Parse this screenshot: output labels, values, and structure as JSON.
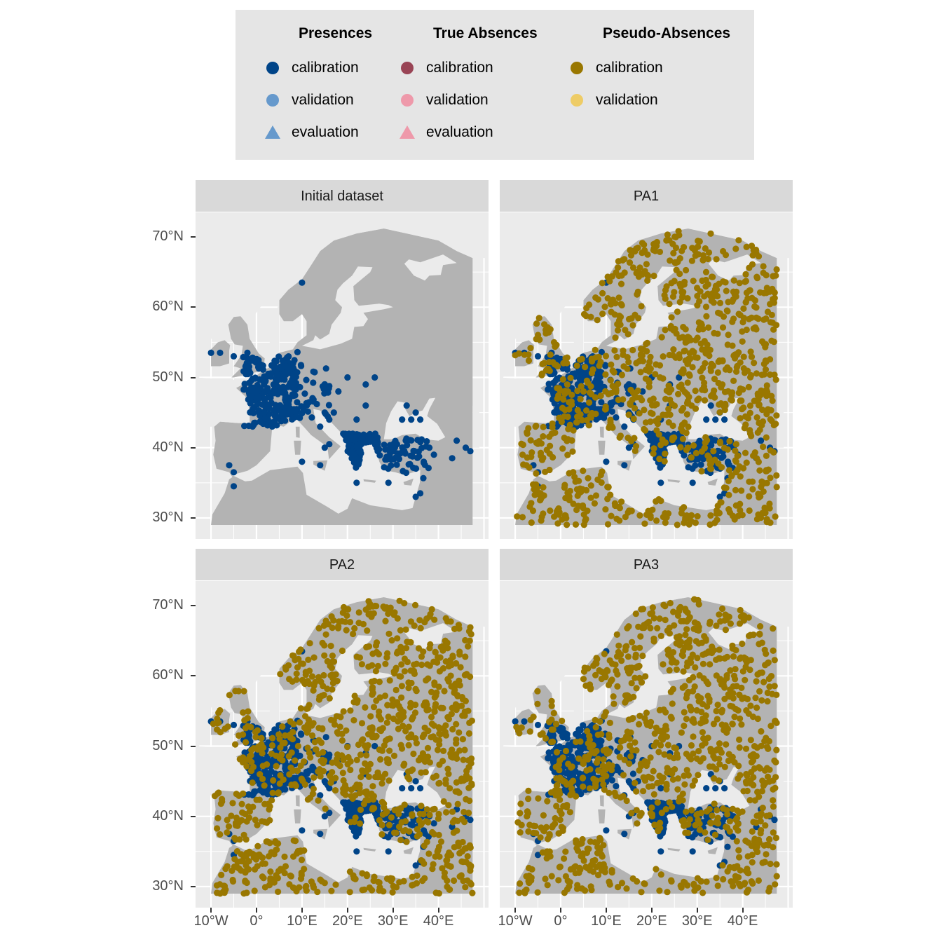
{
  "legend": {
    "groups": [
      {
        "title": "Presences",
        "items": [
          {
            "label": "calibration",
            "shape": "circle",
            "color": "#004488"
          },
          {
            "label": "validation",
            "shape": "circle",
            "color": "#6699cc"
          },
          {
            "label": "evaluation",
            "shape": "triangle",
            "color": "#6699cc"
          }
        ]
      },
      {
        "title": "True Absences",
        "items": [
          {
            "label": "calibration",
            "shape": "circle",
            "color": "#994455"
          },
          {
            "label": "validation",
            "shape": "circle",
            "color": "#ee99aa"
          },
          {
            "label": "evaluation",
            "shape": "triangle",
            "color": "#ee99aa"
          }
        ]
      },
      {
        "title": "Pseudo-Absences",
        "items": [
          {
            "label": "calibration",
            "shape": "circle",
            "color": "#997700"
          },
          {
            "label": "validation",
            "shape": "circle",
            "color": "#eecc66"
          }
        ]
      }
    ]
  },
  "panels": [
    {
      "title": "Initial dataset"
    },
    {
      "title": "PA1"
    },
    {
      "title": "PA2"
    },
    {
      "title": "PA3"
    }
  ],
  "axes": {
    "y_ticks": [
      "30°N",
      "40°N",
      "50°N",
      "60°N",
      "70°N"
    ],
    "x_ticks": [
      "10°W",
      "0°",
      "10°E",
      "20°E",
      "30°E",
      "40°E"
    ]
  },
  "colors": {
    "panel_background": "#ebebeb",
    "land": "#b3b3b3",
    "sea": "#ebebeb",
    "grid": "#ffffff",
    "presence_calibration": "#004488",
    "pseudo_absence_calibration": "#997700"
  },
  "chart_data": {
    "type": "scatter",
    "projection": "equirectangular",
    "xlim": [
      -10,
      47.5
    ],
    "ylim": [
      29,
      71
    ],
    "x_ticks": [
      -10,
      0,
      10,
      20,
      30,
      40
    ],
    "y_ticks": [
      30,
      40,
      50,
      60,
      70
    ],
    "presence_clusters": [
      {
        "name": "France/Benelux",
        "lon": [
          -3,
          9
        ],
        "lat": [
          43,
          53
        ],
        "n": 260
      },
      {
        "name": "Germany/Alps",
        "lon": [
          6,
          16
        ],
        "lat": [
          44,
          52
        ],
        "n": 60
      },
      {
        "name": "Greece/Aegean",
        "lon": [
          19,
          27
        ],
        "lat": [
          36,
          42
        ],
        "n": 140
      },
      {
        "name": "Anatolia",
        "lon": [
          26,
          38
        ],
        "lat": [
          35,
          42
        ],
        "n": 60
      },
      {
        "name": "Scattered",
        "points": [
          [
            -10,
            53.5
          ],
          [
            -8,
            53.5
          ],
          [
            -5,
            53
          ],
          [
            -2,
            53.5
          ],
          [
            9,
            53.6
          ],
          [
            10,
            63.5
          ],
          [
            -6,
            37.5
          ],
          [
            -5,
            36.5
          ],
          [
            -5,
            34.5
          ],
          [
            14,
            43
          ],
          [
            15,
            45
          ],
          [
            17,
            45
          ],
          [
            16,
            44
          ],
          [
            22,
            44
          ],
          [
            24,
            46
          ],
          [
            24,
            49
          ],
          [
            18,
            48
          ],
          [
            20,
            50
          ],
          [
            26,
            50
          ],
          [
            33,
            46
          ],
          [
            35,
            45
          ],
          [
            34,
            44
          ],
          [
            32,
            44
          ],
          [
            36,
            44
          ],
          [
            38,
            40
          ],
          [
            39,
            39
          ],
          [
            43,
            38.5
          ],
          [
            44,
            41
          ],
          [
            46,
            40
          ],
          [
            47,
            39.5
          ],
          [
            35,
            33
          ],
          [
            36,
            33.5
          ],
          [
            29,
            35
          ],
          [
            22,
            35
          ],
          [
            14,
            37.5
          ],
          [
            10,
            38
          ],
          [
            15,
            40
          ],
          [
            16,
            40.5
          ]
        ]
      }
    ],
    "pseudo_absences_per_panel": 1000,
    "panels_with_pseudo_absences": [
      "PA1",
      "PA2",
      "PA3"
    ]
  }
}
